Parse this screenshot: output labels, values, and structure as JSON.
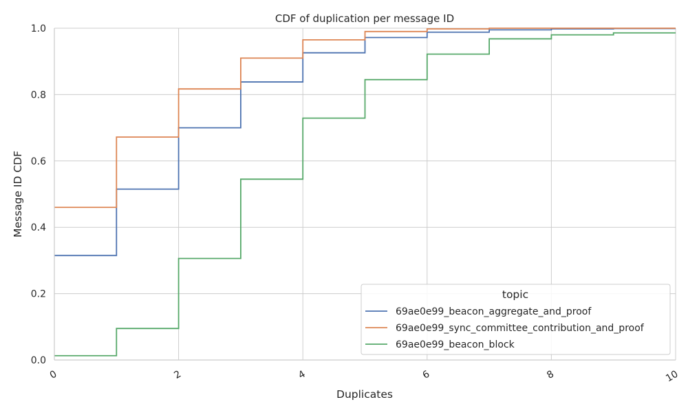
{
  "chart_data": {
    "type": "line",
    "step": true,
    "title": "CDF of duplication per message ID",
    "xlabel": "Duplicates",
    "ylabel": "Message ID CDF",
    "xlim": [
      0,
      10
    ],
    "ylim": [
      0,
      1.0
    ],
    "xticks": [
      "0",
      "2",
      "4",
      "6",
      "8",
      "10"
    ],
    "yticks": [
      "0.0",
      "0.2",
      "0.4",
      "0.6",
      "0.8",
      "1.0"
    ],
    "grid": true,
    "legend": {
      "title": "topic",
      "position": "bottom-right"
    },
    "x": [
      0,
      1,
      2,
      3,
      4,
      5,
      6,
      7,
      8,
      9,
      10
    ],
    "series": [
      {
        "name": "69ae0e99_beacon_aggregate_and_proof",
        "color": "#4c72b0",
        "values": [
          0.315,
          0.515,
          0.7,
          0.838,
          0.926,
          0.972,
          0.988,
          0.995,
          0.998,
          0.999,
          0.999
        ]
      },
      {
        "name": "69ae0e99_sync_committee_contribution_and_proof",
        "color": "#dd8452",
        "values": [
          0.46,
          0.672,
          0.817,
          0.91,
          0.965,
          0.99,
          0.998,
          1.0,
          1.0,
          1.0,
          1.0
        ]
      },
      {
        "name": "69ae0e99_beacon_block",
        "color": "#55a868",
        "values": [
          0.013,
          0.095,
          0.306,
          0.545,
          0.729,
          0.845,
          0.922,
          0.968,
          0.98,
          0.986,
          0.986
        ]
      }
    ]
  }
}
